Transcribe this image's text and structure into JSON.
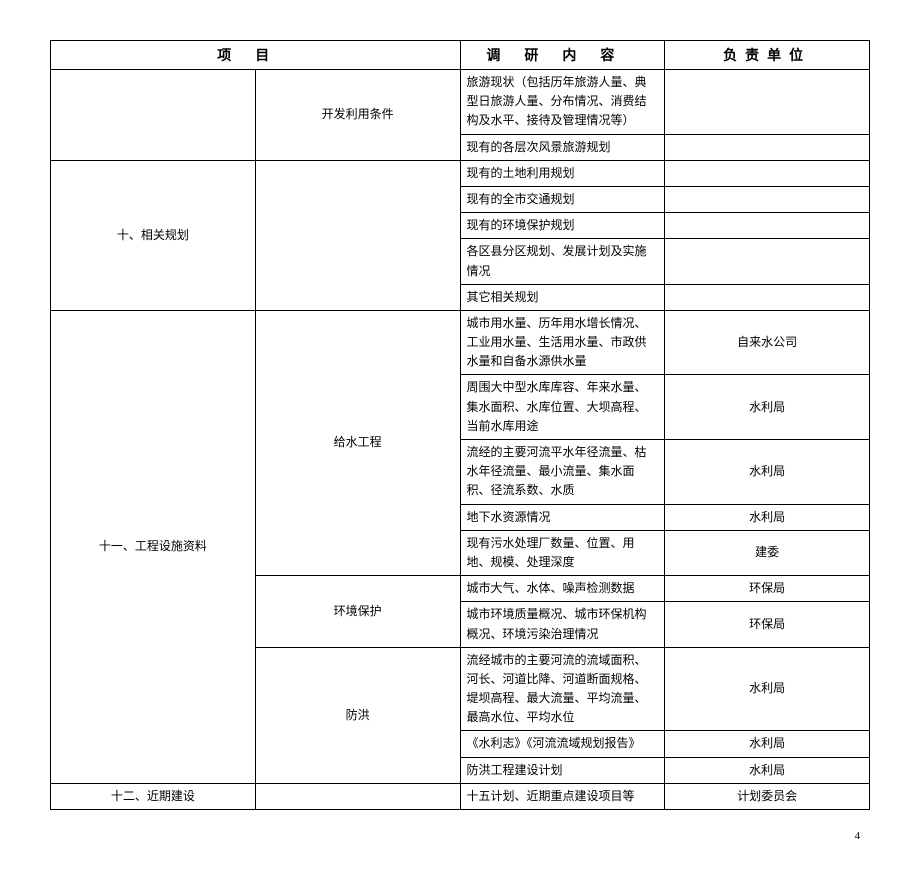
{
  "headers": {
    "project": "项目",
    "content": "调研内容",
    "unit": "负责单位"
  },
  "section1": {
    "sub": "开发利用条件",
    "rows": [
      {
        "content": "旅游现状（包括历年旅游人量、典型日旅游人量、分布情况、消费结构及水平、接待及管理情况等）",
        "unit": ""
      },
      {
        "content": "现有的各层次风景旅游规划",
        "unit": ""
      }
    ]
  },
  "section2": {
    "project": "十、相关规划",
    "rows": [
      {
        "content": "现有的土地利用规划",
        "unit": ""
      },
      {
        "content": "现有的全市交通规划",
        "unit": ""
      },
      {
        "content": "现有的环境保护规划",
        "unit": ""
      },
      {
        "content": "各区县分区规划、发展计划及实施情况",
        "unit": ""
      },
      {
        "content": "其它相关规划",
        "unit": ""
      }
    ]
  },
  "section3": {
    "project": "十一、工程设施资料",
    "sub1": "给水工程",
    "sub2": "环境保护",
    "sub3": "防洪",
    "rows": [
      {
        "content": "城市用水量、历年用水增长情况、工业用水量、生活用水量、市政供水量和自备水源供水量",
        "unit": "自来水公司"
      },
      {
        "content": "周围大中型水库库容、年来水量、集水面积、水库位置、大坝高程、当前水库用途",
        "unit": "水利局"
      },
      {
        "content": "流经的主要河流平水年径流量、枯水年径流量、最小流量、集水面积、径流系数、水质",
        "unit": "水利局"
      },
      {
        "content": "地下水资源情况",
        "unit": "水利局"
      },
      {
        "content": "现有污水处理厂数量、位置、用地、规模、处理深度",
        "unit": "建委"
      },
      {
        "content": "城市大气、水体、噪声检测数据",
        "unit": "环保局"
      },
      {
        "content": "城市环境质量概况、城市环保机构概况、环境污染治理情况",
        "unit": "环保局"
      },
      {
        "content": "流经城市的主要河流的流域面积、河长、河道比降、河道断面规格、堤坝高程、最大流量、平均流量、最高水位、平均水位",
        "unit": "水利局"
      },
      {
        "content": "《水利志》《河流流域规划报告》",
        "unit": "水利局"
      },
      {
        "content": "防洪工程建设计划",
        "unit": "水利局"
      }
    ]
  },
  "section4": {
    "project": "十二、近期建设",
    "content": "十五计划、近期重点建设项目等",
    "unit": "计划委员会"
  },
  "page_num": "4"
}
